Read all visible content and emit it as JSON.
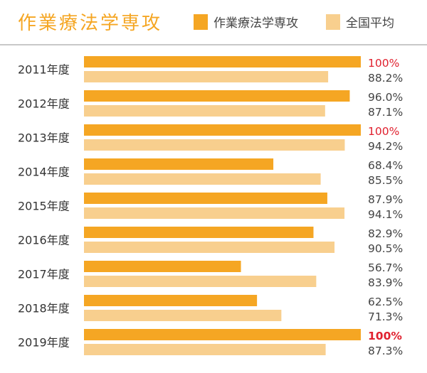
{
  "title": "作業療法学専攻",
  "legend": [
    {
      "name": "作業療法学専攻",
      "color": "#f5a623"
    },
    {
      "name": "全国平均",
      "color": "#f8cf8e"
    }
  ],
  "chart_data": {
    "type": "bar",
    "orientation": "horizontal",
    "title": "作業療法学専攻",
    "categories": [
      "2011年度",
      "2012年度",
      "2013年度",
      "2014年度",
      "2015年度",
      "2016年度",
      "2017年度",
      "2018年度",
      "2019年度"
    ],
    "series": [
      {
        "name": "作業療法学専攻",
        "color": "#f5a623",
        "values": [
          100,
          96.0,
          100,
          68.4,
          87.9,
          82.9,
          56.7,
          62.5,
          100
        ],
        "labels": [
          "100%",
          "96.0%",
          "100%",
          "68.4%",
          "87.9%",
          "82.9%",
          "56.7%",
          "62.5%",
          "100%"
        ]
      },
      {
        "name": "全国平均",
        "color": "#f8cf8e",
        "values": [
          88.2,
          87.1,
          94.2,
          85.5,
          94.1,
          90.5,
          83.9,
          71.3,
          87.3
        ],
        "labels": [
          "88.2%",
          "87.1%",
          "94.2%",
          "85.5%",
          "94.1%",
          "90.5%",
          "83.9%",
          "71.3%",
          "87.3%"
        ]
      }
    ],
    "xlim": [
      0,
      100
    ],
    "grid": false,
    "legend_position": "top-right",
    "highlight_color": "#e0212f",
    "label_color": "#444444"
  }
}
